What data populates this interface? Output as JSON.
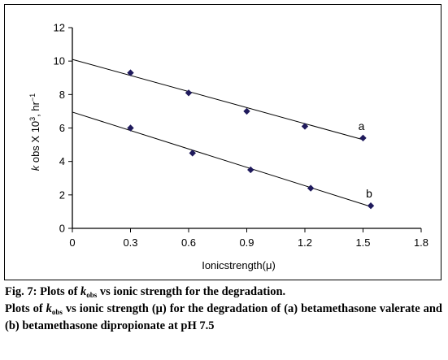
{
  "chart_data": {
    "type": "scatter",
    "xlabel": "Ionicstrength(μ)",
    "ylabel_k": "k",
    "ylabel_mid": " obs X 10",
    "ylabel_sup": "3",
    "ylabel_end": ", hr",
    "ylabel_sup2": "−1",
    "xlim": [
      0,
      1.8
    ],
    "ylim": [
      0,
      12
    ],
    "xticks": [
      "0",
      "0.3",
      "0.6",
      "0.9",
      "1.2",
      "1.5",
      "1.8"
    ],
    "yticks": [
      "0",
      "2",
      "4",
      "6",
      "8",
      "10",
      "12"
    ],
    "grid": false,
    "marker_color": "#1f1a5c",
    "series": [
      {
        "name": "a",
        "x": [
          0.3,
          0.6,
          0.9,
          1.2,
          1.5
        ],
        "y": [
          9.3,
          8.1,
          7.0,
          6.1,
          5.4
        ],
        "fit": [
          [
            0,
            10.1
          ],
          [
            1.5,
            5.3
          ]
        ]
      },
      {
        "name": "b",
        "x": [
          0.3,
          0.62,
          0.92,
          1.23,
          1.54
        ],
        "y": [
          6.0,
          4.5,
          3.5,
          2.4,
          1.35
        ],
        "fit": [
          [
            0,
            6.95
          ],
          [
            1.54,
            1.3
          ]
        ]
      }
    ]
  },
  "caption": {
    "fig_label": "Fig. 7: Plots of ",
    "k": "k",
    "sub": "obs",
    "line1_end": " vs ionic strength for the degradation.",
    "line2_start": "Plots of ",
    "line2_end": " vs ionic strength (μ) for the degradation of (a) betamethasone valerate and (b) betamethasone dipropionate at pH 7.5"
  }
}
